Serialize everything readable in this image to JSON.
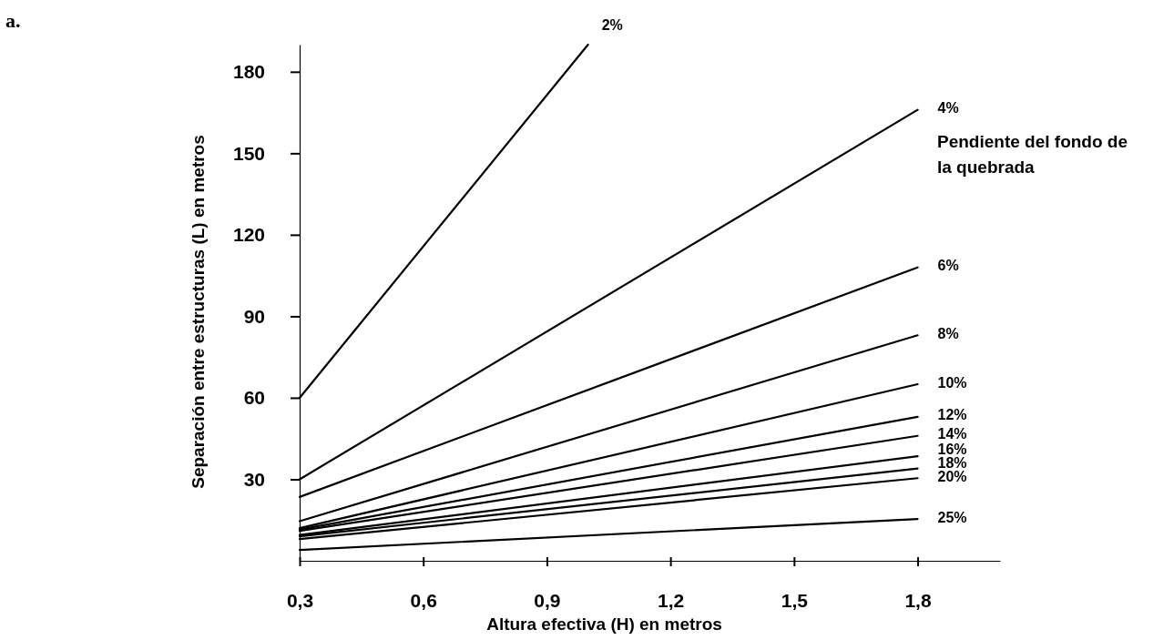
{
  "chart_data": {
    "type": "line",
    "xlabel": "Altura efectiva (H) en metros",
    "ylabel": "Separación entre estructuras (L) en metros",
    "legend_title": "Pendiente del fondo de la quebrada",
    "annotations": [
      "a."
    ],
    "x": [
      0.3,
      1.8
    ],
    "xlim": [
      0.3,
      2.0
    ],
    "xticks": [
      {
        "value": 0.3,
        "label": "0,3"
      },
      {
        "value": 0.6,
        "label": "0,6"
      },
      {
        "value": 0.9,
        "label": "0,9"
      },
      {
        "value": 1.2,
        "label": "1,2"
      },
      {
        "value": 1.5,
        "label": "1,5"
      },
      {
        "value": 1.8,
        "label": "1,8"
      }
    ],
    "ylim": [
      0,
      190
    ],
    "yticks": [
      30,
      60,
      90,
      120,
      150,
      180
    ],
    "grid": false,
    "marker": "none",
    "line_style": "solid",
    "series": [
      {
        "name": "2%",
        "color": "#000000",
        "x": [
          0.3,
          1.0
        ],
        "values": [
          60,
          190
        ]
      },
      {
        "name": "4%",
        "color": "#000000",
        "values": [
          30,
          166
        ]
      },
      {
        "name": "6%",
        "color": "#000000",
        "values": [
          23.5,
          108
        ]
      },
      {
        "name": "8%",
        "color": "#000000",
        "values": [
          14.6,
          83
        ]
      },
      {
        "name": "10%",
        "color": "#000000",
        "values": [
          12,
          65
        ]
      },
      {
        "name": "12%",
        "color": "#000000",
        "values": [
          11.5,
          53
        ]
      },
      {
        "name": "14%",
        "color": "#000000",
        "values": [
          11,
          46
        ]
      },
      {
        "name": "16%",
        "color": "#000000",
        "values": [
          9.5,
          38.5
        ]
      },
      {
        "name": "18%",
        "color": "#000000",
        "values": [
          9,
          34
        ]
      },
      {
        "name": "20%",
        "color": "#000000",
        "values": [
          8,
          30.4
        ]
      },
      {
        "name": "25%",
        "color": "#000000",
        "values": [
          4,
          15.4
        ]
      }
    ]
  }
}
